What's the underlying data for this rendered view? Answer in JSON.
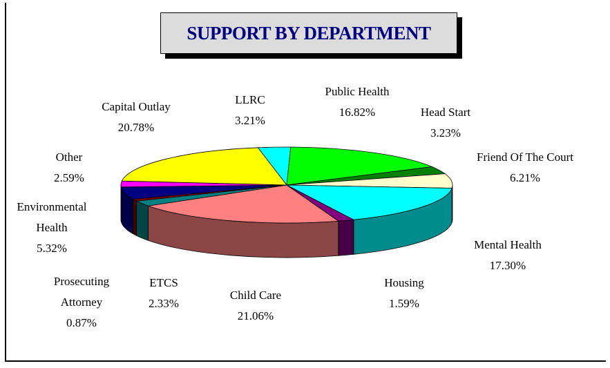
{
  "chart_data": {
    "type": "pie3d",
    "title": "SUPPORT BY DEPARTMENT",
    "categories": [
      "LLRC",
      "Public Health",
      "Head Start",
      "Friend Of The Court",
      "Mental Health",
      "Housing",
      "Child Care",
      "ETCS",
      "Prosecuting Attorney",
      "Environmental Health",
      "Other",
      "Capital Outlay"
    ],
    "values": [
      3.21,
      16.82,
      3.23,
      6.21,
      17.3,
      1.59,
      21.06,
      2.33,
      0.87,
      5.32,
      2.59,
      20.78
    ],
    "value_labels": [
      "3.21%",
      "16.82%",
      "3.23%",
      "6.21%",
      "17.30%",
      "1.59%",
      "21.06%",
      "2.33%",
      "0.87%",
      "5.32%",
      "2.59%",
      "20.78%"
    ],
    "colors": [
      "#00ffff",
      "#00ff00",
      "#008000",
      "#ffffcc",
      "#00ffff",
      "#800080",
      "#ff8080",
      "#008080",
      "#800000",
      "#000080",
      "#ff00ff",
      "#ffff00"
    ]
  }
}
